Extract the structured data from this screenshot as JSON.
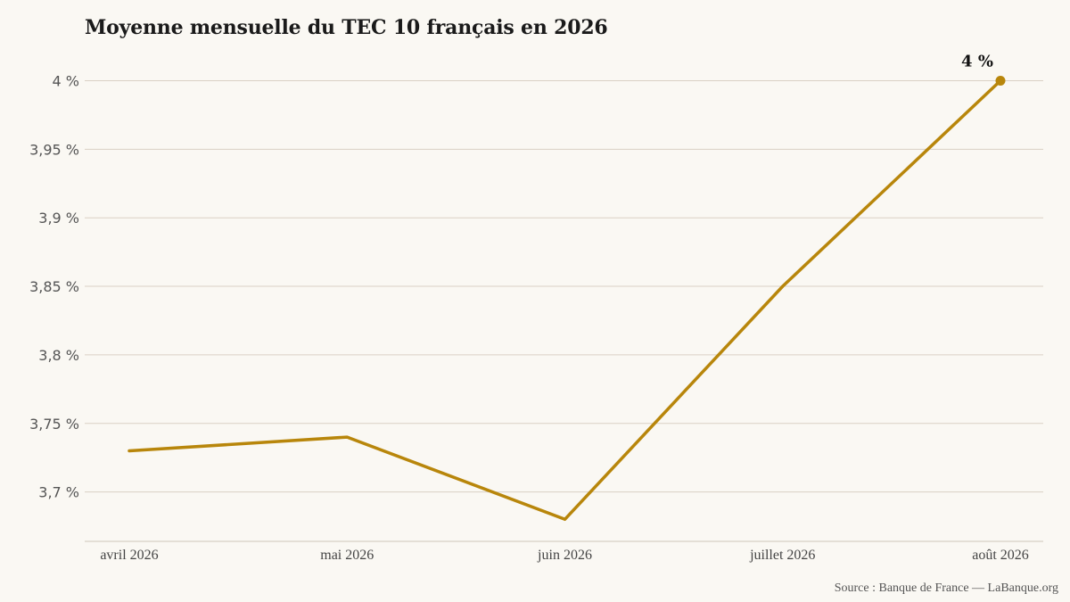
{
  "chart_data": {
    "type": "line",
    "title": "Moyenne mensuelle du TEC 10 français en 2026",
    "categories": [
      "avril 2026",
      "mai 2026",
      "juin 2026",
      "juillet 2026",
      "août 2026"
    ],
    "series": [
      {
        "values": [
          3.73,
          3.74,
          3.68,
          3.85,
          4.0
        ]
      }
    ],
    "yticks": [
      3.7,
      3.75,
      3.8,
      3.85,
      3.9,
      3.95,
      4.0
    ],
    "ytick_labels": [
      "3,7 %",
      "3,75 %",
      "3,8 %",
      "3,85 %",
      "3,9 %",
      "3,95 %",
      "4 %"
    ],
    "ylim": [
      3.665,
      4.0
    ],
    "end_label": "4 %",
    "grid": true,
    "colors": {
      "line": "#b8860b",
      "grid": "#d9d0c4",
      "axis": "#cfc6ba",
      "background": "#faf8f3"
    }
  },
  "source": "Source : Banque de France — LaBanque.org"
}
